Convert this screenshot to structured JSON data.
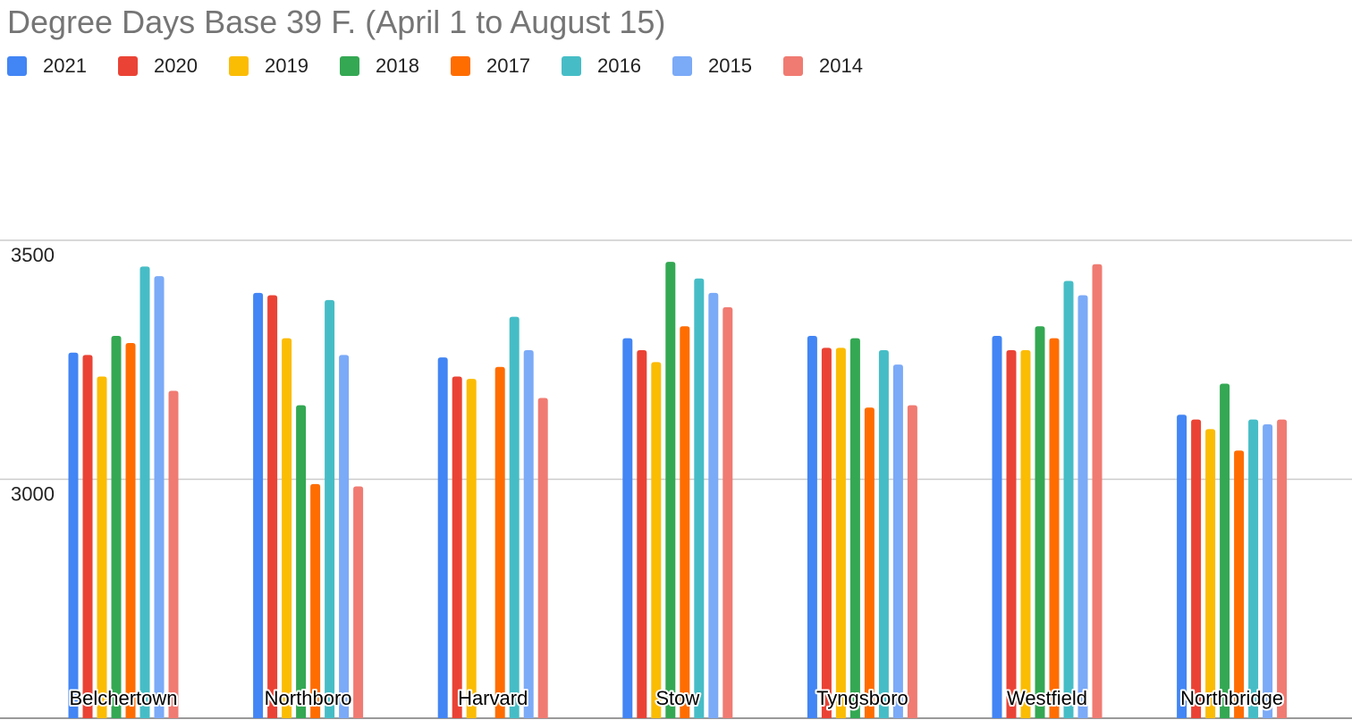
{
  "chart_data": {
    "type": "bar",
    "title": "Degree Days Base 39 F. (April 1 to August 15)",
    "xlabel": "",
    "ylabel": "",
    "ylim": [
      2500,
      3500
    ],
    "yticks": [
      3000,
      3500
    ],
    "grid": true,
    "legend_position": "top-left",
    "categories": [
      "Belchertown",
      "Northboro",
      "Harvard",
      "Stow",
      "Tyngsboro",
      "Westfield",
      "Northbridge"
    ],
    "series": [
      {
        "name": "2021",
        "color": "#4285F4",
        "values": [
          3265,
          3390,
          3255,
          3295,
          3300,
          3300,
          3135
        ]
      },
      {
        "name": "2020",
        "color": "#EA4335",
        "values": [
          3260,
          3385,
          3215,
          3270,
          3275,
          3270,
          3125
        ]
      },
      {
        "name": "2019",
        "color": "#FBBC04",
        "values": [
          3215,
          3295,
          3210,
          3245,
          3275,
          3270,
          3105
        ]
      },
      {
        "name": "2018",
        "color": "#34A853",
        "values": [
          3300,
          3155,
          null,
          3455,
          3295,
          3320,
          3200
        ]
      },
      {
        "name": "2017",
        "color": "#FF6D01",
        "values": [
          3285,
          2990,
          3235,
          3320,
          3150,
          3295,
          3060
        ]
      },
      {
        "name": "2016",
        "color": "#46BDC6",
        "values": [
          3445,
          3375,
          3340,
          3420,
          3270,
          3415,
          3125
        ]
      },
      {
        "name": "2015",
        "color": "#7BAAF7",
        "values": [
          3425,
          3260,
          3270,
          3390,
          3240,
          3385,
          3115
        ]
      },
      {
        "name": "2014",
        "color": "#F07B72",
        "values": [
          3185,
          2985,
          3170,
          3360,
          3155,
          3450,
          3125
        ]
      }
    ]
  },
  "colors": {
    "title": "#757575",
    "gridline": "#cccccc",
    "axis": "#999999",
    "text": "#222222"
  }
}
